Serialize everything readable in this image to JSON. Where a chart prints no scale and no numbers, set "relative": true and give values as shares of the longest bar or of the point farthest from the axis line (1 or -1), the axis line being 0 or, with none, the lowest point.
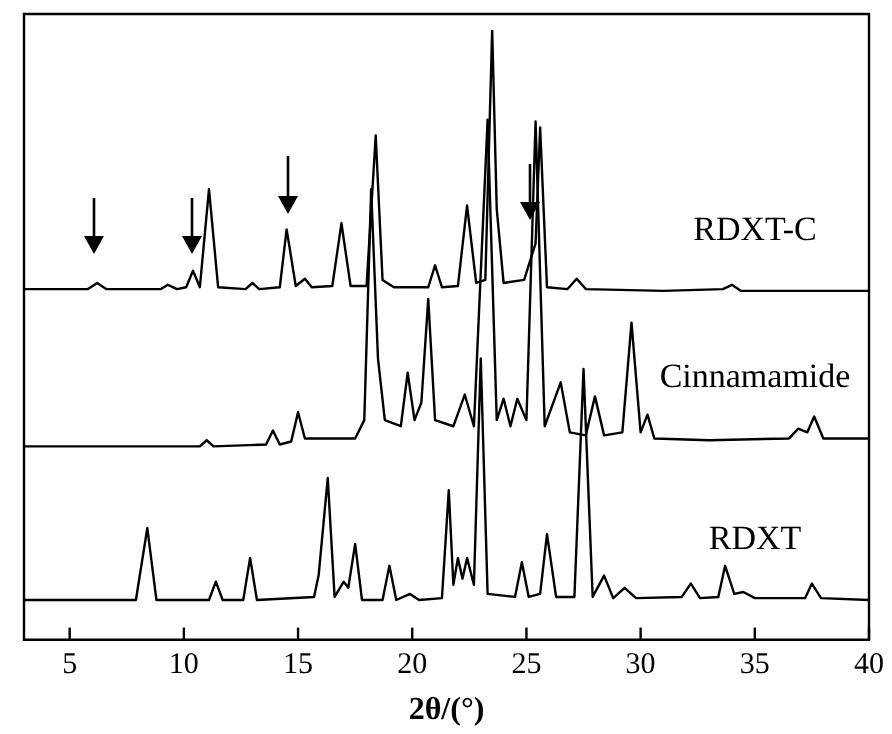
{
  "chart_data": {
    "type": "line",
    "relative": true,
    "xlabel": "2θ/(°)",
    "xlim": [
      3,
      40
    ],
    "xticks": [
      5,
      10,
      15,
      20,
      25,
      30,
      35,
      40
    ],
    "grid": false,
    "legend": false,
    "marker": "none",
    "line_style": "solid",
    "series": [
      {
        "name": "RDXT-C",
        "color": "#000000",
        "x": [
          3,
          5.8,
          6.2,
          6.6,
          9.0,
          9.3,
          9.7,
          10.1,
          10.4,
          10.7,
          11.1,
          11.5,
          12.7,
          13.0,
          13.3,
          14.2,
          14.5,
          14.9,
          15.3,
          15.6,
          16.5,
          16.9,
          17.3,
          18.0,
          18.4,
          18.7,
          19.2,
          20.7,
          21.0,
          21.3,
          22.0,
          22.4,
          22.8,
          23.2,
          23.5,
          23.7,
          24.0,
          24.9,
          25.4,
          25.6,
          25.9,
          26.8,
          27.2,
          27.6,
          31,
          33.6,
          34.0,
          34.4,
          40
        ],
        "values": [
          0.575,
          0.575,
          0.585,
          0.575,
          0.575,
          0.582,
          0.575,
          0.578,
          0.605,
          0.578,
          0.739,
          0.578,
          0.575,
          0.585,
          0.575,
          0.578,
          0.673,
          0.58,
          0.592,
          0.578,
          0.58,
          0.683,
          0.58,
          0.58,
          0.827,
          0.59,
          0.578,
          0.578,
          0.614,
          0.578,
          0.58,
          0.712,
          0.585,
          0.59,
          1.0,
          0.706,
          0.585,
          0.59,
          0.65,
          0.84,
          0.578,
          0.575,
          0.592,
          0.575,
          0.572,
          0.575,
          0.582,
          0.572,
          0.572
        ]
      },
      {
        "name": "Cinnamamide",
        "color": "#000000",
        "x": [
          3,
          10.7,
          11.0,
          11.3,
          13.6,
          13.9,
          14.2,
          14.7,
          15.0,
          15.3,
          17.5,
          17.9,
          18.2,
          18.5,
          18.8,
          19.5,
          19.8,
          20.1,
          20.4,
          20.7,
          21.0,
          21.8,
          22.3,
          22.7,
          23.3,
          23.7,
          24.0,
          24.3,
          24.6,
          25.0,
          25.4,
          25.8,
          26.5,
          26.9,
          27.6,
          28.0,
          28.4,
          29.2,
          29.6,
          30.0,
          30.3,
          30.6,
          33,
          36.5,
          36.9,
          37.3,
          37.6,
          38,
          40
        ],
        "values": [
          0.317,
          0.317,
          0.327,
          0.317,
          0.32,
          0.343,
          0.32,
          0.325,
          0.373,
          0.33,
          0.33,
          0.36,
          0.739,
          0.461,
          0.36,
          0.35,
          0.438,
          0.36,
          0.389,
          0.559,
          0.36,
          0.35,
          0.402,
          0.35,
          0.853,
          0.36,
          0.395,
          0.35,
          0.395,
          0.36,
          0.85,
          0.35,
          0.422,
          0.34,
          0.335,
          0.399,
          0.335,
          0.34,
          0.52,
          0.34,
          0.369,
          0.33,
          0.327,
          0.33,
          0.346,
          0.34,
          0.366,
          0.33,
          0.33
        ]
      },
      {
        "name": "RDXT",
        "color": "#000000",
        "x": [
          3,
          7.9,
          8.4,
          8.8,
          11.1,
          11.4,
          11.7,
          12.6,
          12.9,
          13.2,
          15.7,
          15.9,
          16.3,
          16.6,
          17.0,
          17.2,
          17.5,
          17.8,
          18.7,
          19.0,
          19.3,
          19.9,
          20.3,
          21.3,
          21.6,
          21.8,
          22.0,
          22.2,
          22.4,
          22.7,
          23.0,
          23.3,
          24.5,
          24.8,
          25.1,
          25.6,
          25.9,
          26.3,
          27.1,
          27.5,
          27.9,
          28.4,
          28.8,
          29.3,
          29.8,
          31.8,
          32.2,
          32.6,
          33.4,
          33.7,
          34.1,
          34.5,
          35,
          37.2,
          37.5,
          37.9,
          40
        ],
        "values": [
          0.065,
          0.065,
          0.183,
          0.065,
          0.065,
          0.095,
          0.065,
          0.065,
          0.134,
          0.065,
          0.07,
          0.105,
          0.265,
          0.07,
          0.095,
          0.085,
          0.157,
          0.065,
          0.065,
          0.121,
          0.065,
          0.075,
          0.065,
          0.068,
          0.245,
          0.09,
          0.134,
          0.1,
          0.134,
          0.09,
          0.461,
          0.075,
          0.07,
          0.127,
          0.07,
          0.075,
          0.173,
          0.07,
          0.07,
          0.444,
          0.07,
          0.105,
          0.068,
          0.085,
          0.068,
          0.07,
          0.092,
          0.068,
          0.07,
          0.121,
          0.075,
          0.078,
          0.068,
          0.068,
          0.092,
          0.068,
          0.065
        ]
      }
    ]
  }
}
